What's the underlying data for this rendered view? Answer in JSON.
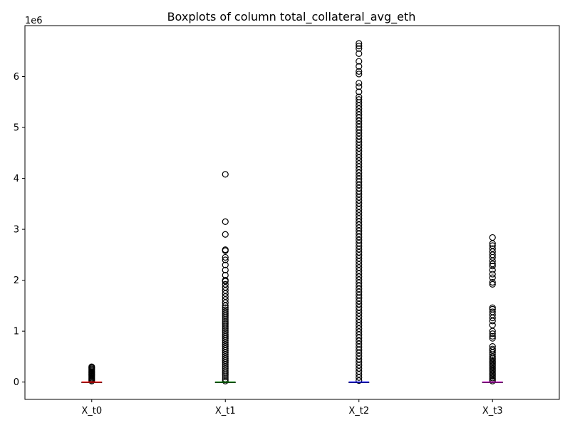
{
  "chart_data": {
    "type": "boxplot",
    "title": "Boxplots of column total_collateral_avg_eth",
    "xlabel": "",
    "ylabel": "",
    "y_offset_label": "1e6",
    "ylim": [
      -340000,
      7000000
    ],
    "y_ticks": [
      0,
      1000000,
      2000000,
      3000000,
      4000000,
      5000000,
      6000000
    ],
    "y_tick_labels": [
      "0",
      "1",
      "2",
      "3",
      "4",
      "5",
      "6"
    ],
    "grid": false,
    "categories": [
      "X_t0",
      "X_t1",
      "X_t2",
      "X_t3"
    ],
    "series": [
      {
        "category": "X_t0",
        "median_color": "#ff0000",
        "box": {
          "whislo": 0,
          "q1": 0,
          "med": 0,
          "q3": 0,
          "whishi": 0
        },
        "fliers": [
          20000,
          40000,
          60000,
          80000,
          100000,
          120000,
          140000,
          160000,
          180000,
          200000,
          220000,
          240000,
          260000,
          280000,
          300000
        ]
      },
      {
        "category": "X_t1",
        "median_color": "#008000",
        "box": {
          "whislo": 0,
          "q1": 0,
          "med": 0,
          "q3": 0,
          "whishi": 0
        },
        "fliers": [
          20000,
          60000,
          100000,
          140000,
          180000,
          220000,
          260000,
          300000,
          340000,
          380000,
          420000,
          460000,
          500000,
          540000,
          580000,
          620000,
          660000,
          700000,
          740000,
          780000,
          820000,
          860000,
          900000,
          940000,
          980000,
          1020000,
          1060000,
          1100000,
          1140000,
          1180000,
          1220000,
          1260000,
          1300000,
          1340000,
          1380000,
          1420000,
          1460000,
          1500000,
          1560000,
          1620000,
          1680000,
          1740000,
          1800000,
          1860000,
          1920000,
          1980000,
          2000000,
          2100000,
          2200000,
          2300000,
          2400000,
          2450000,
          2580000,
          2600000,
          2900000,
          3150000,
          4080000
        ]
      },
      {
        "category": "X_t2",
        "median_color": "#0000ff",
        "box": {
          "whislo": 0,
          "q1": 0,
          "med": 0,
          "q3": 0,
          "whishi": 0
        },
        "fliers": [
          30000,
          90000,
          150000,
          210000,
          270000,
          330000,
          390000,
          450000,
          510000,
          570000,
          630000,
          690000,
          750000,
          810000,
          870000,
          930000,
          990000,
          1050000,
          1110000,
          1170000,
          1230000,
          1290000,
          1350000,
          1410000,
          1470000,
          1530000,
          1590000,
          1650000,
          1710000,
          1770000,
          1830000,
          1890000,
          1950000,
          2010000,
          2070000,
          2130000,
          2190000,
          2250000,
          2310000,
          2370000,
          2430000,
          2490000,
          2550000,
          2610000,
          2670000,
          2730000,
          2790000,
          2850000,
          2910000,
          2970000,
          3030000,
          3090000,
          3150000,
          3210000,
          3270000,
          3330000,
          3390000,
          3450000,
          3510000,
          3570000,
          3630000,
          3690000,
          3750000,
          3810000,
          3870000,
          3930000,
          3990000,
          4050000,
          4110000,
          4170000,
          4230000,
          4290000,
          4350000,
          4410000,
          4470000,
          4530000,
          4590000,
          4650000,
          4710000,
          4770000,
          4830000,
          4890000,
          4950000,
          5010000,
          5070000,
          5130000,
          5190000,
          5250000,
          5310000,
          5370000,
          5430000,
          5490000,
          5550000,
          5600000,
          5700000,
          5800000,
          5870000,
          6050000,
          6100000,
          6200000,
          6300000,
          6450000,
          6550000,
          6600000,
          6650000
        ]
      },
      {
        "category": "X_t3",
        "median_color": "#bf00bf",
        "box": {
          "whislo": 0,
          "q1": 0,
          "med": 0,
          "q3": 0,
          "whishi": 0
        },
        "fliers": [
          20000,
          50000,
          80000,
          110000,
          140000,
          170000,
          200000,
          230000,
          260000,
          290000,
          320000,
          350000,
          380000,
          410000,
          440000,
          470000,
          500000,
          540000,
          580000,
          620000,
          650000,
          700000,
          860000,
          900000,
          950000,
          1000000,
          1120000,
          1200000,
          1260000,
          1320000,
          1380000,
          1430000,
          1460000,
          1920000,
          1960000,
          2050000,
          2120000,
          2200000,
          2280000,
          2320000,
          2380000,
          2450000,
          2500000,
          2560000,
          2620000,
          2680000,
          2720000,
          2840000
        ]
      }
    ]
  }
}
